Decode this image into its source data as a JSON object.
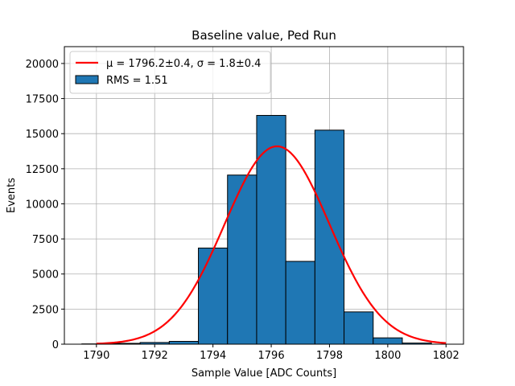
{
  "chart_data": {
    "type": "bar",
    "title": "Baseline value, Ped Run",
    "xlabel": "Sample Value [ADC Counts]",
    "ylabel": "Events",
    "xlim": [
      1788.9,
      1802.6
    ],
    "ylim": [
      0,
      21200
    ],
    "grid": true,
    "legend_placement": "top-left",
    "xticks": [
      1790,
      1792,
      1794,
      1796,
      1798,
      1800,
      1802
    ],
    "xtick_labels": [
      "1790",
      "1792",
      "1794",
      "1796",
      "1798",
      "1800",
      "1802"
    ],
    "yticks": [
      0,
      2500,
      5000,
      7500,
      10000,
      12500,
      15000,
      17500,
      20000
    ],
    "ytick_labels": [
      "0",
      "2500",
      "5000",
      "7500",
      "10000",
      "12500",
      "15000",
      "17500",
      "20000"
    ],
    "bin_edges": [
      1789.5,
      1790.5,
      1791.5,
      1792.5,
      1793.5,
      1794.5,
      1795.5,
      1796.5,
      1797.5,
      1798.5,
      1799.5,
      1800.5,
      1801.5
    ],
    "counts": [
      20,
      60,
      120,
      200,
      6850,
      12050,
      16300,
      5900,
      15250,
      2300,
      450,
      80
    ],
    "bar_color": "#1f77b4",
    "bar_edge_color": "#000000",
    "fit": {
      "name_text": "μ = 1796.2±0.4, σ = 1.8±0.4",
      "function": "gaussian",
      "mu": 1796.2,
      "sigma": 1.8,
      "amplitude": 14100,
      "x_range": [
        1790,
        1802
      ],
      "color": "#ff0000"
    },
    "histogram_legend_text": "RMS = 1.51"
  }
}
